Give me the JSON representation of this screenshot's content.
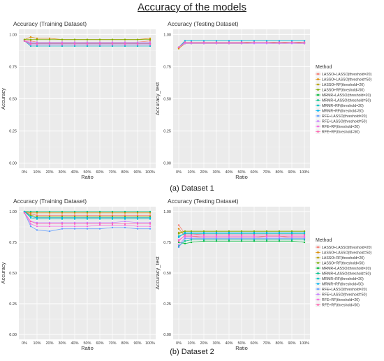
{
  "title": "Accuracy of the models",
  "captions": [
    "(a) Dataset 1",
    "(b) Dataset 2"
  ],
  "legend": {
    "title": "Method",
    "entries": [
      {
        "label": "LASSO+LASSO(threshold=20)",
        "color": "#f8766d"
      },
      {
        "label": "LASSO+LASSO(threshold=50)",
        "color": "#de8c00"
      },
      {
        "label": "LASSO+RF(threshold=20)",
        "color": "#b79f00"
      },
      {
        "label": "LASSO+RF(threshold=50)",
        "color": "#7cae00"
      },
      {
        "label": "MRMR+LASSO(threshold=20)",
        "color": "#00ba38"
      },
      {
        "label": "MRMR+LASSO(threshold=50)",
        "color": "#00c08b"
      },
      {
        "label": "MRMR+RF(threshold=20)",
        "color": "#00bfc4"
      },
      {
        "label": "MRMR+RF(threshold=50)",
        "color": "#00b4f0"
      },
      {
        "label": "RFE+LASSO(threshold=20)",
        "color": "#619cff"
      },
      {
        "label": "RFE+LASSO(threshold=50)",
        "color": "#c77cff"
      },
      {
        "label": "RFE+RF(threshold=20)",
        "color": "#f564e3"
      },
      {
        "label": "RFE+RF(threshold=50)",
        "color": "#ff64b0"
      }
    ]
  },
  "chart_data": [
    {
      "type": "line",
      "title": "Accuracy (Training Dataset)",
      "xlabel": "Ratio",
      "ylabel": "Accuracy",
      "categories": [
        "0%",
        "10%",
        "20%",
        "30%",
        "40%",
        "50%",
        "60%",
        "70%",
        "80%",
        "90%",
        "100%"
      ],
      "x": [
        0,
        5,
        10,
        20,
        30,
        40,
        50,
        60,
        70,
        80,
        90,
        100
      ],
      "ylim": [
        -0.04,
        1.04
      ],
      "yticks": [
        0,
        0.25,
        0.5,
        0.75,
        1
      ],
      "yticklabels": [
        "0.00",
        "0.25",
        "0.50",
        "0.75",
        "1.00"
      ],
      "series": [
        {
          "name": "LASSO+LASSO(threshold=20)",
          "values": [
            0.95,
            0.95,
            0.94,
            0.94,
            0.94,
            0.94,
            0.94,
            0.94,
            0.94,
            0.94,
            0.94,
            0.95
          ]
        },
        {
          "name": "LASSO+LASSO(threshold=50)",
          "values": [
            0.96,
            0.98,
            0.97,
            0.97,
            0.96,
            0.96,
            0.96,
            0.96,
            0.96,
            0.96,
            0.96,
            0.97
          ]
        },
        {
          "name": "LASSO+RF(threshold=20)",
          "values": [
            0.95,
            0.93,
            0.93,
            0.93,
            0.93,
            0.93,
            0.93,
            0.93,
            0.93,
            0.93,
            0.93,
            0.93
          ]
        },
        {
          "name": "LASSO+RF(threshold=50)",
          "values": [
            0.96,
            0.96,
            0.96,
            0.96,
            0.96,
            0.96,
            0.96,
            0.96,
            0.96,
            0.96,
            0.96,
            0.96
          ]
        },
        {
          "name": "MRMR+LASSO(threshold=20)",
          "values": [
            0.95,
            0.92,
            0.92,
            0.92,
            0.92,
            0.92,
            0.92,
            0.92,
            0.92,
            0.92,
            0.92,
            0.92
          ]
        },
        {
          "name": "MRMR+LASSO(threshold=50)",
          "values": [
            0.95,
            0.93,
            0.93,
            0.93,
            0.93,
            0.93,
            0.93,
            0.93,
            0.93,
            0.93,
            0.93,
            0.93
          ]
        },
        {
          "name": "MRMR+RF(threshold=20)",
          "values": [
            0.95,
            0.91,
            0.91,
            0.91,
            0.91,
            0.91,
            0.91,
            0.91,
            0.91,
            0.91,
            0.91,
            0.91
          ]
        },
        {
          "name": "MRMR+RF(threshold=50)",
          "values": [
            0.95,
            0.93,
            0.93,
            0.93,
            0.93,
            0.93,
            0.93,
            0.93,
            0.93,
            0.93,
            0.93,
            0.93
          ]
        },
        {
          "name": "RFE+LASSO(threshold=20)",
          "values": [
            0.95,
            0.92,
            0.92,
            0.92,
            0.92,
            0.92,
            0.92,
            0.92,
            0.92,
            0.92,
            0.92,
            0.92
          ]
        },
        {
          "name": "RFE+LASSO(threshold=50)",
          "values": [
            0.95,
            0.94,
            0.94,
            0.94,
            0.94,
            0.94,
            0.94,
            0.94,
            0.94,
            0.94,
            0.94,
            0.94
          ]
        },
        {
          "name": "RFE+RF(threshold=20)",
          "values": [
            0.95,
            0.92,
            0.92,
            0.92,
            0.92,
            0.92,
            0.92,
            0.92,
            0.92,
            0.92,
            0.92,
            0.92
          ]
        },
        {
          "name": "RFE+RF(threshold=50)",
          "values": [
            0.95,
            0.93,
            0.93,
            0.93,
            0.93,
            0.93,
            0.93,
            0.93,
            0.93,
            0.93,
            0.93,
            0.93
          ]
        }
      ]
    },
    {
      "type": "line",
      "title": "Accuracy (Testing Dataset)",
      "xlabel": "Ratio",
      "ylabel": "Accuracy_test",
      "categories": [
        "0%",
        "10%",
        "20%",
        "30%",
        "40%",
        "50%",
        "60%",
        "70%",
        "80%",
        "90%",
        "100%"
      ],
      "x": [
        0,
        5,
        10,
        20,
        30,
        40,
        50,
        60,
        70,
        80,
        90,
        100
      ],
      "ylim": [
        -0.04,
        1.04
      ],
      "yticks": [
        0,
        0.25,
        0.5,
        0.75,
        1
      ],
      "yticklabels": [
        "0.00",
        "0.25",
        "0.50",
        "0.75",
        "1.00"
      ],
      "series": [
        {
          "name": "LASSO+LASSO(threshold=20)",
          "values": [
            0.9,
            0.94,
            0.94,
            0.94,
            0.94,
            0.94,
            0.94,
            0.94,
            0.94,
            0.94,
            0.94,
            0.93
          ]
        },
        {
          "name": "LASSO+LASSO(threshold=50)",
          "values": [
            0.89,
            0.93,
            0.93,
            0.93,
            0.93,
            0.93,
            0.93,
            0.94,
            0.94,
            0.93,
            0.94,
            0.93
          ]
        },
        {
          "name": "LASSO+RF(threshold=20)",
          "values": [
            0.9,
            0.94,
            0.94,
            0.94,
            0.94,
            0.94,
            0.94,
            0.94,
            0.94,
            0.94,
            0.94,
            0.94
          ]
        },
        {
          "name": "LASSO+RF(threshold=50)",
          "values": [
            0.9,
            0.95,
            0.95,
            0.95,
            0.95,
            0.95,
            0.95,
            0.95,
            0.95,
            0.95,
            0.95,
            0.95
          ]
        },
        {
          "name": "MRMR+LASSO(threshold=20)",
          "values": [
            0.9,
            0.94,
            0.94,
            0.94,
            0.94,
            0.94,
            0.94,
            0.94,
            0.94,
            0.94,
            0.94,
            0.94
          ]
        },
        {
          "name": "MRMR+LASSO(threshold=50)",
          "values": [
            0.9,
            0.94,
            0.94,
            0.94,
            0.94,
            0.94,
            0.94,
            0.94,
            0.94,
            0.94,
            0.94,
            0.94
          ]
        },
        {
          "name": "MRMR+RF(threshold=20)",
          "values": [
            0.9,
            0.95,
            0.95,
            0.95,
            0.95,
            0.95,
            0.95,
            0.95,
            0.95,
            0.95,
            0.95,
            0.95
          ]
        },
        {
          "name": "MRMR+RF(threshold=50)",
          "values": [
            0.9,
            0.95,
            0.95,
            0.95,
            0.95,
            0.95,
            0.95,
            0.95,
            0.95,
            0.95,
            0.95,
            0.95
          ]
        },
        {
          "name": "RFE+LASSO(threshold=20)",
          "values": [
            0.9,
            0.94,
            0.94,
            0.94,
            0.94,
            0.94,
            0.94,
            0.94,
            0.94,
            0.94,
            0.94,
            0.94
          ]
        },
        {
          "name": "RFE+LASSO(threshold=50)",
          "values": [
            0.9,
            0.93,
            0.93,
            0.93,
            0.93,
            0.93,
            0.93,
            0.93,
            0.93,
            0.93,
            0.93,
            0.93
          ]
        },
        {
          "name": "RFE+RF(threshold=20)",
          "values": [
            0.9,
            0.94,
            0.94,
            0.94,
            0.94,
            0.94,
            0.94,
            0.94,
            0.94,
            0.94,
            0.94,
            0.94
          ]
        },
        {
          "name": "RFE+RF(threshold=50)",
          "values": [
            0.9,
            0.94,
            0.94,
            0.94,
            0.94,
            0.94,
            0.94,
            0.94,
            0.94,
            0.94,
            0.94,
            0.94
          ]
        }
      ]
    },
    {
      "type": "line",
      "title": "Accuracy (Training Dataset)",
      "xlabel": "Ratio",
      "ylabel": "Accuracy",
      "categories": [
        "0%",
        "10%",
        "20%",
        "30%",
        "40%",
        "50%",
        "60%",
        "70%",
        "80%",
        "90%",
        "100%"
      ],
      "x": [
        0,
        5,
        10,
        20,
        30,
        40,
        50,
        60,
        70,
        80,
        90,
        100
      ],
      "ylim": [
        -0.04,
        1.04
      ],
      "yticks": [
        0,
        0.25,
        0.5,
        0.75,
        1
      ],
      "yticklabels": [
        "0.00",
        "0.25",
        "0.50",
        "0.75",
        "1.00"
      ],
      "series": [
        {
          "name": "LASSO+LASSO(threshold=20)",
          "values": [
            1.0,
            0.98,
            0.97,
            0.97,
            0.97,
            0.97,
            0.97,
            0.97,
            0.97,
            0.97,
            0.97,
            0.97
          ]
        },
        {
          "name": "LASSO+LASSO(threshold=50)",
          "values": [
            1.0,
            0.99,
            0.99,
            0.99,
            0.99,
            0.99,
            0.99,
            0.99,
            0.99,
            0.99,
            0.99,
            0.99
          ]
        },
        {
          "name": "LASSO+RF(threshold=20)",
          "values": [
            1.0,
            0.96,
            0.95,
            0.95,
            0.95,
            0.95,
            0.95,
            0.95,
            0.95,
            0.95,
            0.95,
            0.95
          ]
        },
        {
          "name": "LASSO+RF(threshold=50)",
          "values": [
            1.0,
            0.97,
            0.96,
            0.96,
            0.96,
            0.96,
            0.96,
            0.96,
            0.96,
            0.96,
            0.96,
            0.96
          ]
        },
        {
          "name": "MRMR+LASSO(threshold=20)",
          "values": [
            1.0,
            1.0,
            1.0,
            1.0,
            1.0,
            1.0,
            1.0,
            1.0,
            1.0,
            1.0,
            1.0,
            1.0
          ]
        },
        {
          "name": "MRMR+LASSO(threshold=50)",
          "values": [
            1.0,
            1.0,
            1.0,
            1.0,
            1.0,
            1.0,
            1.0,
            1.0,
            1.0,
            1.0,
            1.0,
            1.0
          ]
        },
        {
          "name": "MRMR+RF(threshold=20)",
          "values": [
            1.0,
            0.95,
            0.94,
            0.94,
            0.94,
            0.94,
            0.94,
            0.94,
            0.94,
            0.94,
            0.94,
            0.94
          ]
        },
        {
          "name": "MRMR+RF(threshold=50)",
          "values": [
            1.0,
            0.96,
            0.95,
            0.95,
            0.95,
            0.95,
            0.95,
            0.95,
            0.95,
            0.95,
            0.95,
            0.95
          ]
        },
        {
          "name": "RFE+LASSO(threshold=20)",
          "values": [
            0.99,
            0.88,
            0.85,
            0.84,
            0.86,
            0.86,
            0.86,
            0.86,
            0.87,
            0.87,
            0.86,
            0.86
          ]
        },
        {
          "name": "RFE+LASSO(threshold=50)",
          "values": [
            0.99,
            0.92,
            0.91,
            0.91,
            0.91,
            0.91,
            0.91,
            0.91,
            0.91,
            0.92,
            0.91,
            0.91
          ]
        },
        {
          "name": "RFE+RF(threshold=20)",
          "values": [
            0.99,
            0.9,
            0.88,
            0.88,
            0.88,
            0.88,
            0.88,
            0.89,
            0.89,
            0.89,
            0.88,
            0.88
          ]
        },
        {
          "name": "RFE+RF(threshold=50)",
          "values": [
            0.99,
            0.92,
            0.9,
            0.9,
            0.9,
            0.9,
            0.9,
            0.9,
            0.9,
            0.9,
            0.9,
            0.9
          ]
        }
      ]
    },
    {
      "type": "line",
      "title": "Accuracy (Testing Dataset)",
      "xlabel": "Ratio",
      "ylabel": "Accuracy_test",
      "categories": [
        "0%",
        "10%",
        "20%",
        "30%",
        "40%",
        "50%",
        "60%",
        "70%",
        "80%",
        "90%",
        "100%"
      ],
      "x": [
        0,
        5,
        10,
        20,
        30,
        40,
        50,
        60,
        70,
        80,
        90,
        100
      ],
      "ylim": [
        -0.04,
        1.04
      ],
      "yticks": [
        0,
        0.25,
        0.5,
        0.75,
        1
      ],
      "yticklabels": [
        "0.00",
        "0.25",
        "0.50",
        "0.75",
        "1.00"
      ],
      "series": [
        {
          "name": "LASSO+LASSO(threshold=20)",
          "values": [
            0.89,
            0.82,
            0.82,
            0.81,
            0.81,
            0.81,
            0.81,
            0.81,
            0.81,
            0.81,
            0.81,
            0.81
          ]
        },
        {
          "name": "LASSO+LASSO(threshold=50)",
          "values": [
            0.86,
            0.8,
            0.8,
            0.79,
            0.79,
            0.79,
            0.79,
            0.79,
            0.8,
            0.8,
            0.79,
            0.79
          ]
        },
        {
          "name": "LASSO+RF(threshold=20)",
          "values": [
            0.83,
            0.84,
            0.84,
            0.84,
            0.84,
            0.84,
            0.84,
            0.84,
            0.84,
            0.84,
            0.84,
            0.84
          ]
        },
        {
          "name": "LASSO+RF(threshold=50)",
          "values": [
            0.82,
            0.84,
            0.84,
            0.84,
            0.84,
            0.84,
            0.84,
            0.84,
            0.84,
            0.84,
            0.84,
            0.84
          ]
        },
        {
          "name": "MRMR+LASSO(threshold=20)",
          "values": [
            0.75,
            0.74,
            0.75,
            0.76,
            0.76,
            0.76,
            0.76,
            0.76,
            0.76,
            0.76,
            0.76,
            0.75
          ]
        },
        {
          "name": "MRMR+LASSO(threshold=50)",
          "values": [
            0.72,
            0.76,
            0.77,
            0.77,
            0.77,
            0.77,
            0.77,
            0.77,
            0.77,
            0.77,
            0.77,
            0.77
          ]
        },
        {
          "name": "MRMR+RF(threshold=20)",
          "values": [
            0.8,
            0.82,
            0.82,
            0.82,
            0.82,
            0.82,
            0.82,
            0.82,
            0.82,
            0.82,
            0.82,
            0.82
          ]
        },
        {
          "name": "MRMR+RF(threshold=50)",
          "values": [
            0.79,
            0.83,
            0.83,
            0.83,
            0.83,
            0.83,
            0.83,
            0.83,
            0.83,
            0.83,
            0.83,
            0.83
          ]
        },
        {
          "name": "RFE+LASSO(threshold=20)",
          "values": [
            0.71,
            0.78,
            0.78,
            0.78,
            0.78,
            0.78,
            0.78,
            0.78,
            0.78,
            0.78,
            0.78,
            0.78
          ]
        },
        {
          "name": "RFE+LASSO(threshold=50)",
          "values": [
            0.73,
            0.79,
            0.79,
            0.79,
            0.79,
            0.79,
            0.79,
            0.79,
            0.79,
            0.79,
            0.79,
            0.79
          ]
        },
        {
          "name": "RFE+RF(threshold=20)",
          "values": [
            0.77,
            0.8,
            0.8,
            0.8,
            0.8,
            0.8,
            0.8,
            0.8,
            0.8,
            0.8,
            0.8,
            0.8
          ]
        },
        {
          "name": "RFE+RF(threshold=50)",
          "values": [
            0.76,
            0.81,
            0.81,
            0.81,
            0.81,
            0.81,
            0.81,
            0.81,
            0.81,
            0.81,
            0.81,
            0.81
          ]
        }
      ]
    }
  ]
}
